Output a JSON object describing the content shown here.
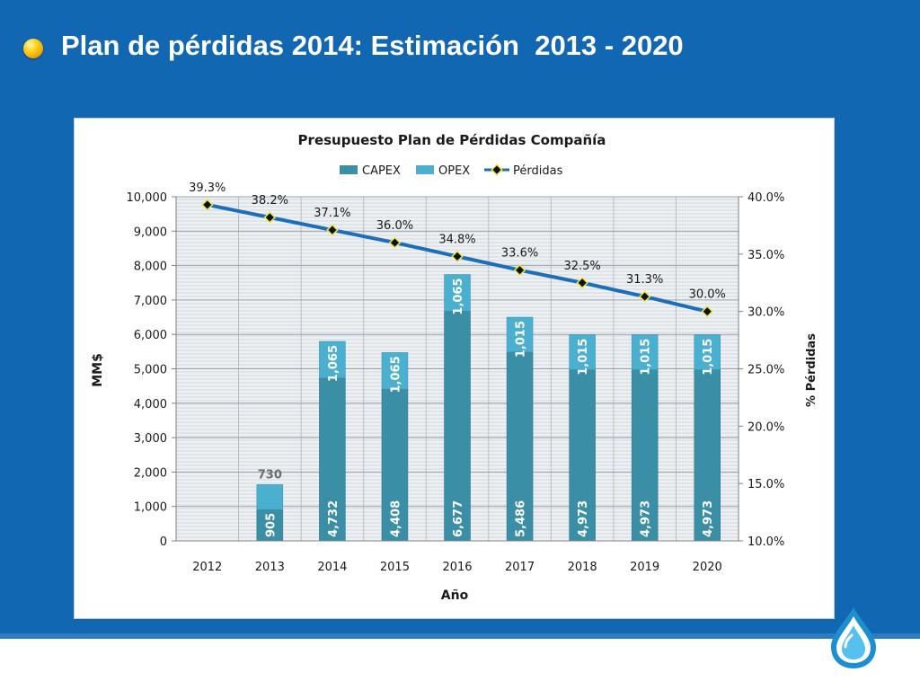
{
  "slide": {
    "title": "Plan de pérdidas 2014: Estimación  2013 - 2020",
    "accent_color": "#1267b2",
    "bullet_icon": "yellow-sphere-bullet",
    "logo_icon": "water-drop-logo"
  },
  "chart_data": {
    "type": "bar",
    "stacked": true,
    "title": "Presupuesto Plan de Pérdidas Compañía",
    "xlabel": "Año",
    "ylabel": "MM$",
    "y2label": "% Pérdidas",
    "categories": [
      "2012",
      "2013",
      "2014",
      "2015",
      "2016",
      "2017",
      "2018",
      "2019",
      "2020"
    ],
    "ylim": [
      0,
      10000
    ],
    "y2lim": [
      10.0,
      40.0
    ],
    "yticks": [
      "0",
      "1,000",
      "2,000",
      "3,000",
      "4,000",
      "5,000",
      "6,000",
      "7,000",
      "8,000",
      "9,000",
      "10,000"
    ],
    "y2ticks": [
      "10.0%",
      "15.0%",
      "20.0%",
      "25.0%",
      "30.0%",
      "35.0%",
      "40.0%"
    ],
    "grid": true,
    "legend_position": "top",
    "series": [
      {
        "name": "CAPEX",
        "type": "bar",
        "color": "#3a8fa6",
        "values": [
          null,
          905,
          4732,
          4408,
          6677,
          5486,
          4973,
          4973,
          4973
        ],
        "labels": [
          "",
          "905",
          "4,732",
          "4,408",
          "6,677",
          "5,486",
          "4,973",
          "4,973",
          "4,973"
        ]
      },
      {
        "name": "OPEX",
        "type": "bar",
        "color": "#4bafcf",
        "values": [
          null,
          730,
          1065,
          1065,
          1065,
          1015,
          1015,
          1015,
          1015
        ],
        "labels": [
          "",
          "730",
          "1,065",
          "1,065",
          "1,065",
          "1,015",
          "1,015",
          "1,015",
          "1,015"
        ]
      },
      {
        "name": "Pérdidas",
        "type": "line",
        "axis": "secondary",
        "color": "#1a6fb8",
        "marker_color": "#e8e84a",
        "values": [
          39.3,
          38.2,
          37.1,
          36.0,
          34.8,
          33.6,
          32.5,
          31.3,
          30.0
        ],
        "labels": [
          "39.3%",
          "38.2%",
          "37.1%",
          "36.0%",
          "34.8%",
          "33.6%",
          "32.5%",
          "31.3%",
          "30.0%"
        ]
      }
    ]
  }
}
